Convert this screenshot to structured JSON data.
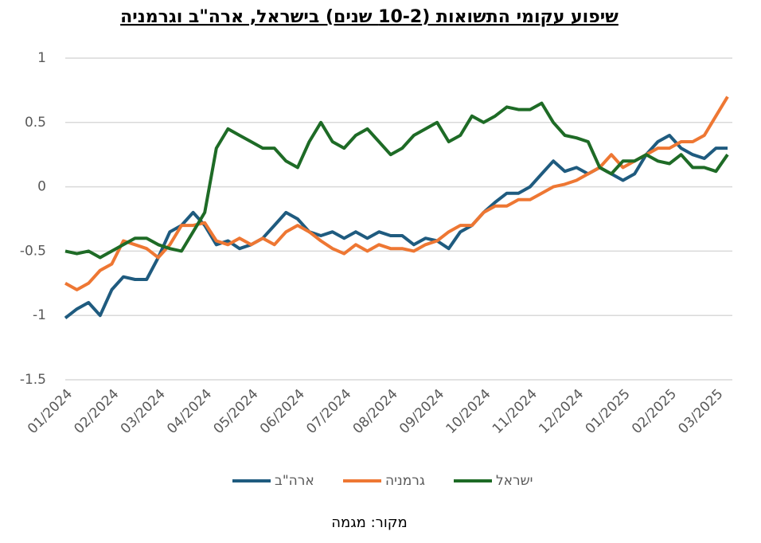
{
  "chart_data": {
    "type": "line",
    "title": "שיפוע עקומי התשואות (10-2 שנים) בישראל, ארה\"ב וגרמניה",
    "source": "מקור: מגמה",
    "categories": [
      "01/2024",
      null,
      null,
      null,
      "02/2024",
      null,
      null,
      null,
      "03/2024",
      null,
      null,
      null,
      "04/2024",
      null,
      null,
      null,
      "05/2024",
      null,
      null,
      null,
      "06/2024",
      null,
      null,
      null,
      "07/2024",
      null,
      null,
      null,
      "08/2024",
      null,
      null,
      null,
      "09/2024",
      null,
      null,
      null,
      "10/2024",
      null,
      null,
      null,
      "11/2024",
      null,
      null,
      null,
      "12/2024",
      null,
      null,
      null,
      "01/2025",
      null,
      null,
      null,
      "02/2025",
      null,
      null,
      null,
      "03/2025",
      null
    ],
    "ylim": [
      -1.5,
      1
    ],
    "yticks": [
      1,
      0.5,
      0,
      -0.5,
      -1,
      -1.5
    ],
    "grid": true,
    "series": [
      {
        "name": "ארה\"ב",
        "color": "#1f5b7f",
        "values": [
          -1.02,
          -0.95,
          -0.9,
          -1.0,
          -0.8,
          -0.7,
          -0.72,
          -0.72,
          -0.55,
          -0.35,
          -0.3,
          -0.2,
          -0.3,
          -0.45,
          -0.42,
          -0.48,
          -0.45,
          -0.4,
          -0.3,
          -0.2,
          -0.25,
          -0.35,
          -0.38,
          -0.35,
          -0.4,
          -0.35,
          -0.4,
          -0.35,
          -0.38,
          -0.38,
          -0.45,
          -0.4,
          -0.42,
          -0.48,
          -0.35,
          -0.3,
          -0.2,
          -0.12,
          -0.05,
          -0.05,
          0.0,
          0.1,
          0.2,
          0.12,
          0.15,
          0.1,
          0.15,
          0.1,
          0.05,
          0.1,
          0.25,
          0.35,
          0.4,
          0.3,
          0.25,
          0.22,
          0.3,
          0.3
        ]
      },
      {
        "name": "גרמניה",
        "color": "#ee7733",
        "values": [
          -0.75,
          -0.8,
          -0.75,
          -0.65,
          -0.6,
          -0.42,
          -0.45,
          -0.48,
          -0.55,
          -0.45,
          -0.3,
          -0.3,
          -0.28,
          -0.42,
          -0.45,
          -0.4,
          -0.45,
          -0.4,
          -0.45,
          -0.35,
          -0.3,
          -0.35,
          -0.42,
          -0.48,
          -0.52,
          -0.45,
          -0.5,
          -0.45,
          -0.48,
          -0.48,
          -0.5,
          -0.45,
          -0.42,
          -0.35,
          -0.3,
          -0.3,
          -0.2,
          -0.15,
          -0.15,
          -0.1,
          -0.1,
          -0.05,
          0.0,
          0.02,
          0.05,
          0.1,
          0.15,
          0.25,
          0.15,
          0.2,
          0.25,
          0.3,
          0.3,
          0.35,
          0.35,
          0.4,
          0.55,
          0.7
        ]
      },
      {
        "name": "ישראל",
        "color": "#1e6b26",
        "values": [
          -0.5,
          -0.52,
          -0.5,
          -0.55,
          -0.5,
          -0.45,
          -0.4,
          -0.4,
          -0.45,
          -0.48,
          -0.5,
          -0.35,
          -0.2,
          0.3,
          0.45,
          0.4,
          0.35,
          0.3,
          0.3,
          0.2,
          0.15,
          0.35,
          0.5,
          0.35,
          0.3,
          0.4,
          0.45,
          0.35,
          0.25,
          0.3,
          0.4,
          0.45,
          0.5,
          0.35,
          0.4,
          0.55,
          0.5,
          0.55,
          0.62,
          0.6,
          0.6,
          0.65,
          0.5,
          0.4,
          0.38,
          0.35,
          0.15,
          0.1,
          0.2,
          0.2,
          0.25,
          0.2,
          0.18,
          0.25,
          0.15,
          0.15,
          0.12,
          0.25
        ]
      }
    ]
  }
}
